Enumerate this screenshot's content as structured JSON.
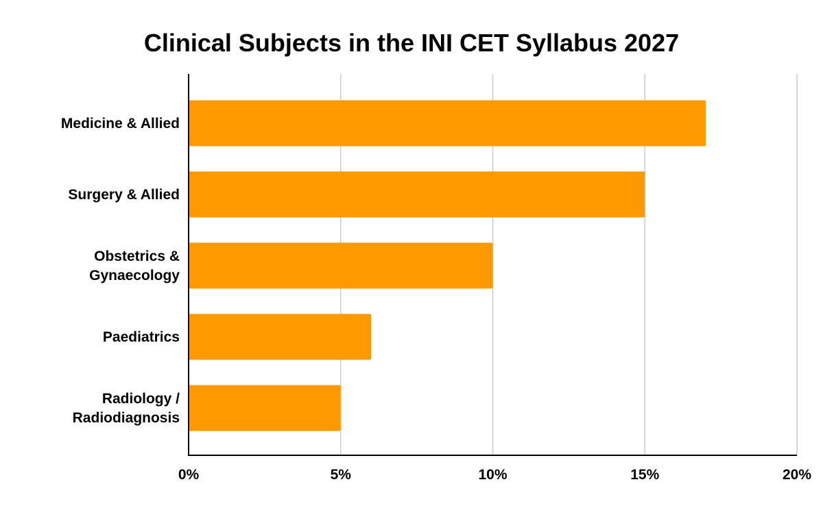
{
  "chart_data": {
    "type": "bar",
    "orientation": "horizontal",
    "title": "Clinical Subjects in the INI CET Syllabus 2027",
    "xlabel": "",
    "ylabel": "",
    "categories": [
      [
        "Medicine & Allied"
      ],
      [
        "Surgery & Allied"
      ],
      [
        "Obstetrics &",
        "Gynaecology"
      ],
      [
        "Paediatrics"
      ],
      [
        "Radiology /",
        "Radiodiagnosis"
      ]
    ],
    "values": [
      17,
      15,
      10,
      6,
      5
    ],
    "xlim": [
      0,
      20
    ],
    "xticks": [
      0,
      5,
      10,
      15,
      20
    ],
    "tick_labels": [
      "0%",
      "5%",
      "10%",
      "15%",
      "20%"
    ],
    "grid": "vertical",
    "legend": "none",
    "bar_color": "#ff9900",
    "grid_color": "#cccccc",
    "axis_color": "#000000"
  }
}
